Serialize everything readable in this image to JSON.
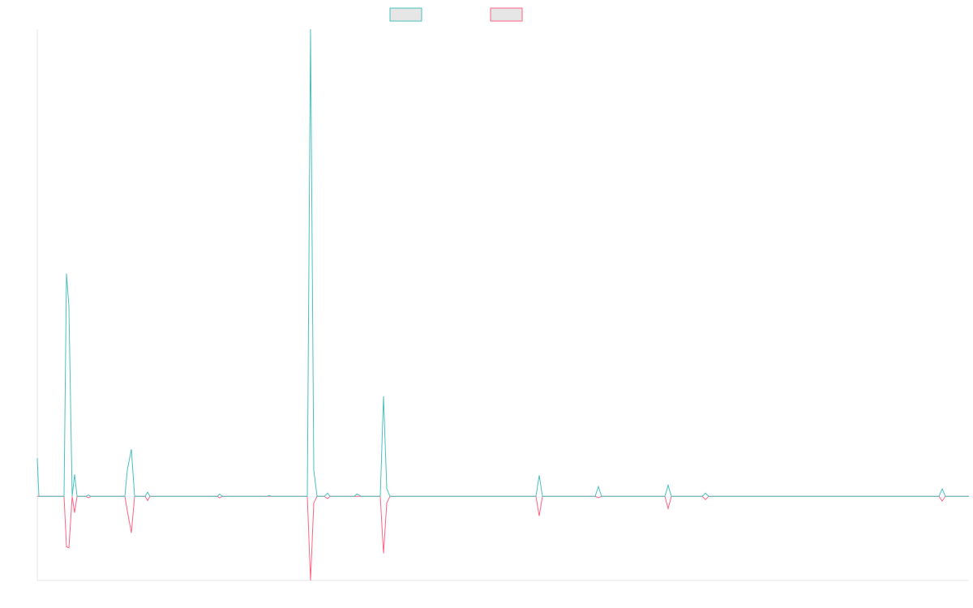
{
  "chart_data": {
    "type": "line",
    "x": [
      0,
      2,
      33,
      36,
      39,
      43,
      46,
      49,
      60,
      63,
      66,
      108,
      111,
      116,
      120,
      133,
      136,
      139,
      222,
      225,
      228,
      283,
      286,
      289,
      333,
      337,
      341,
      345,
      354,
      358,
      361,
      391,
      394,
      400,
      423,
      427,
      431,
      435,
      615,
      619,
      623,
      688,
      692,
      696,
      774,
      778,
      782,
      820,
      824,
      828,
      1112,
      1116,
      1120,
      1149
    ],
    "xlim": [
      0,
      1149
    ],
    "ylim": [
      -18,
      100
    ],
    "series": [
      {
        "color": "#4bc0c0",
        "values": [
          8.2,
          0,
          0,
          47.7,
          40.6,
          0,
          4.7,
          0,
          0,
          0.3,
          0,
          0,
          5.6,
          10.1,
          0,
          0,
          0.9,
          0,
          0,
          0.5,
          0,
          0,
          0.2,
          0,
          0,
          100,
          5.6,
          0,
          0,
          0.7,
          0,
          0,
          0.5,
          0,
          0,
          21.4,
          1.6,
          0,
          0,
          4.5,
          0,
          0,
          2.1,
          0,
          0,
          2.4,
          0,
          0,
          0.7,
          0,
          0,
          1.6,
          0,
          0
        ]
      },
      {
        "color": "#ff6384",
        "values": [
          0,
          0,
          0,
          -10.8,
          -11.0,
          0,
          -3.5,
          0,
          0,
          -0.3,
          0,
          0,
          -3.1,
          -7.8,
          0,
          0,
          -0.9,
          0,
          0,
          -0.3,
          0,
          0,
          0,
          0,
          0,
          -18,
          -1.4,
          0,
          0,
          -0.5,
          0,
          0,
          0,
          0,
          0,
          -12.2,
          -1.4,
          0,
          0,
          -4.2,
          0,
          0,
          -0.3,
          0,
          0,
          -2.6,
          0,
          0,
          -0.7,
          0,
          0,
          -1.0,
          0,
          0
        ]
      }
    ]
  }
}
